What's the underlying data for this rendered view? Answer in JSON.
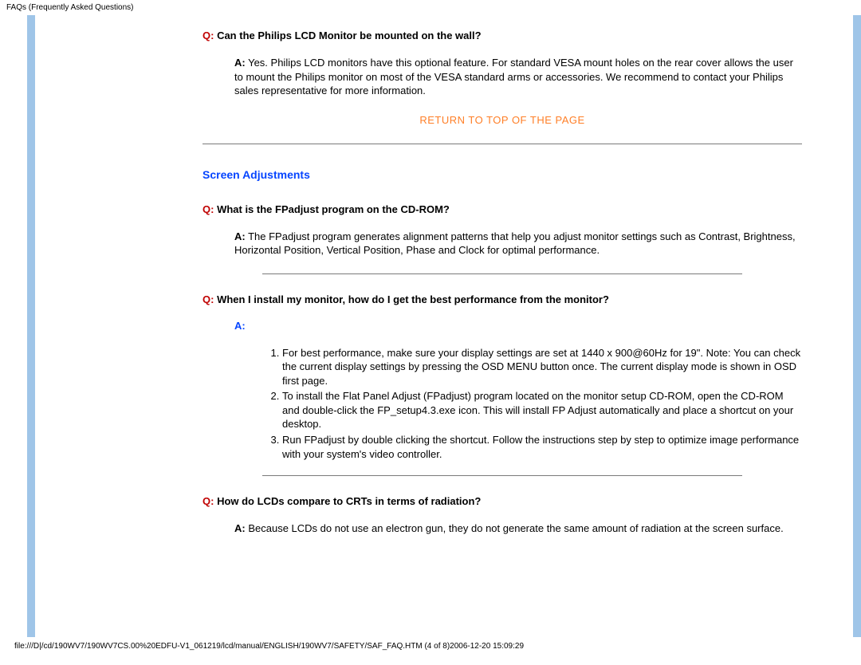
{
  "header": "FAQs (Frequently Asked Questions)",
  "faq1": {
    "q_prefix": "Q:",
    "q_text": " Can the Philips LCD Monitor be mounted on the wall?",
    "a_prefix": "A:",
    "a_text": " Yes. Philips LCD monitors have this optional feature. For standard VESA mount holes on the rear cover allows the user to mount the Philips monitor on most of the VESA standard arms or accessories. We recommend to contact your Philips sales representative for more information."
  },
  "return_link": "RETURN TO TOP OF THE PAGE",
  "section_title": "Screen Adjustments",
  "faq2": {
    "q_prefix": "Q:",
    "q_text": " What is the FPadjust program on the CD-ROM?",
    "a_prefix": "A:",
    "a_text": " The FPadjust program generates alignment patterns that help you adjust monitor settings such as Contrast, Brightness, Horizontal Position, Vertical Position, Phase and Clock for optimal performance."
  },
  "faq3": {
    "q_prefix": "Q:",
    "q_text": " When I install my monitor, how do I get the best performance from the monitor?",
    "a_solo": "A:",
    "li1": "For best performance, make sure your display settings are set at 1440 x 900@60Hz for 19\". Note: You can check the current display settings by pressing the OSD MENU button once. The current display mode is shown in OSD first page.",
    "li2": "To install the Flat Panel Adjust (FPadjust) program located on the monitor setup CD-ROM, open the CD-ROM and double-click the FP_setup4.3.exe icon. This will install FP Adjust automatically and place a shortcut on your desktop.",
    "li3": "Run FPadjust by double clicking the shortcut. Follow the instructions step by step to optimize image performance with your system's video controller."
  },
  "faq4": {
    "q_prefix": "Q:",
    "q_text": " How do LCDs compare to CRTs in terms of radiation?",
    "a_prefix": "A:",
    "a_text": " Because LCDs do not use an electron gun, they do not generate the same amount of radiation at the screen surface."
  },
  "footer": "file:///D|/cd/190WV7/190WV7CS.00%20EDFU-V1_061219/lcd/manual/ENGLISH/190WV7/SAFETY/SAF_FAQ.HTM (4 of 8)2006-12-20 15:09:29"
}
